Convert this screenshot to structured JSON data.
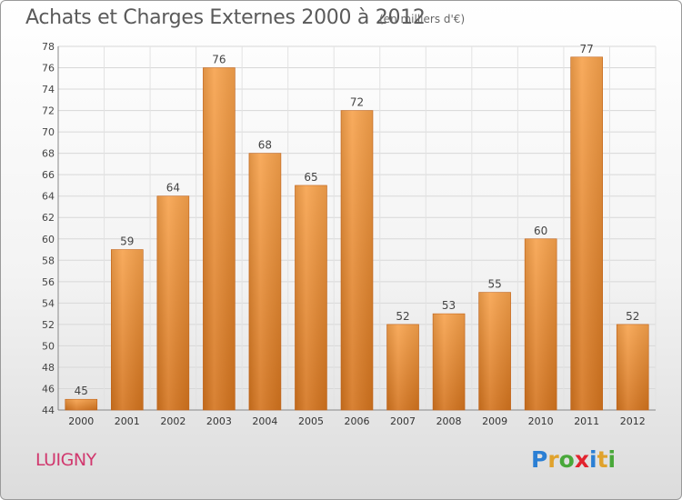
{
  "header": {
    "title": "Achats et Charges Externes 2000 à 2012",
    "unit": "(en milliers d'€)"
  },
  "footer": {
    "commune": "LUIGNY",
    "logo": {
      "letters": [
        {
          "char": "P",
          "color": "#2b7fd4"
        },
        {
          "char": "r",
          "color": "#e0a22c"
        },
        {
          "char": "o",
          "color": "#49a83a"
        },
        {
          "char": "x",
          "color": "#e2232e"
        },
        {
          "char": "i",
          "color": "#2b7fd4"
        },
        {
          "char": "t",
          "color": "#e0a22c"
        },
        {
          "char": "i",
          "color": "#49a83a"
        }
      ]
    }
  },
  "chart_data": {
    "type": "bar",
    "categories": [
      "2000",
      "2001",
      "2002",
      "2003",
      "2004",
      "2005",
      "2006",
      "2007",
      "2008",
      "2009",
      "2010",
      "2011",
      "2012"
    ],
    "values": [
      45,
      59,
      64,
      76,
      68,
      65,
      72,
      52,
      53,
      55,
      60,
      77,
      52
    ],
    "ylim": [
      44,
      78
    ],
    "yticks": [
      44,
      46,
      48,
      50,
      52,
      54,
      56,
      58,
      60,
      62,
      64,
      66,
      68,
      70,
      72,
      74,
      76,
      78
    ],
    "grid": true,
    "bar_color": "#f0923a",
    "title": "Achats et Charges Externes 2000 à 2012"
  }
}
